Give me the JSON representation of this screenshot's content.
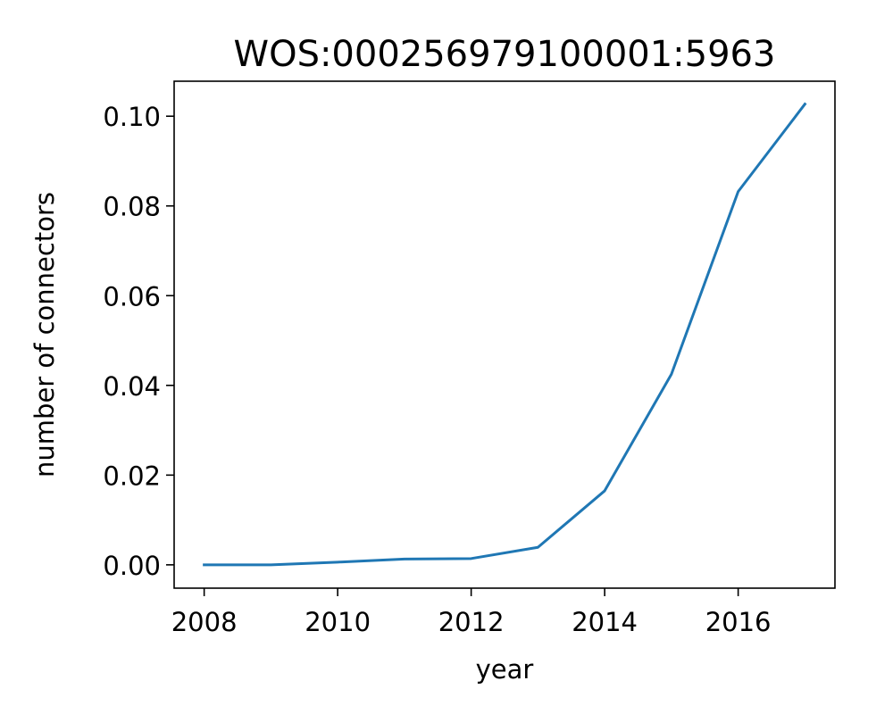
{
  "chart_data": {
    "type": "line",
    "title": "WOS:000256979100001:5963",
    "xlabel": "year",
    "ylabel": "number of connectors",
    "xlim": [
      2007.55,
      2017.45
    ],
    "ylim": [
      -0.0052,
      0.1078
    ],
    "x_ticks": [
      2008,
      2010,
      2012,
      2014,
      2016
    ],
    "x_tick_labels": [
      "2008",
      "2010",
      "2012",
      "2014",
      "2016"
    ],
    "y_ticks": [
      0.0,
      0.02,
      0.04,
      0.06,
      0.08,
      0.1
    ],
    "y_tick_labels": [
      "0.00",
      "0.02",
      "0.04",
      "0.06",
      "0.08",
      "0.10"
    ],
    "grid": false,
    "series": [
      {
        "color": "#1f77b4",
        "x": [
          2008,
          2009,
          2010,
          2011,
          2012,
          2013,
          2014,
          2015,
          2016,
          2017
        ],
        "y": [
          0.0,
          0.0,
          0.0006,
          0.0013,
          0.0014,
          0.0039,
          0.0165,
          0.0425,
          0.0832,
          0.1027
        ]
      }
    ]
  }
}
